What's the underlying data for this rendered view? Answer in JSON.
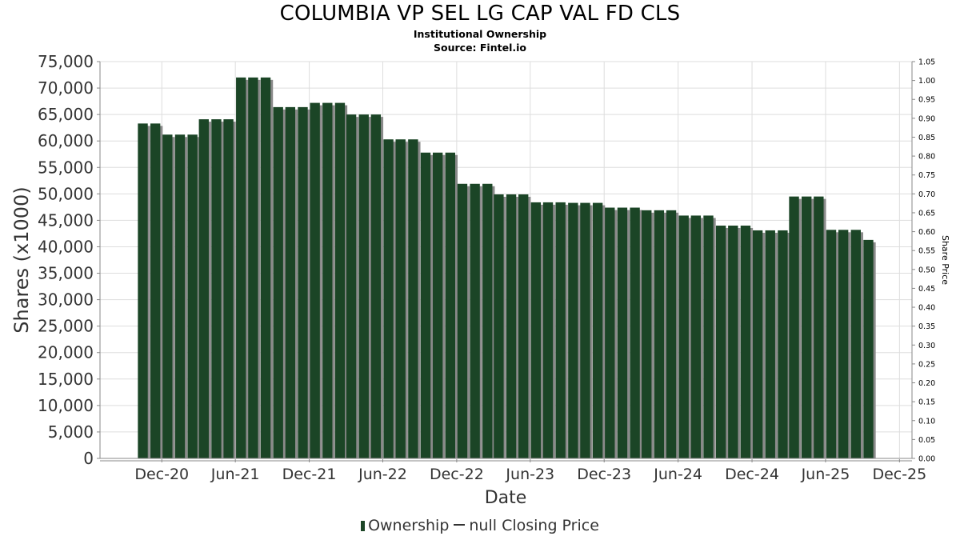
{
  "header": {
    "title": "COLUMBIA VP SEL LG CAP VAL FD CLS",
    "subtitle": "Institutional Ownership",
    "source": "Source: Fintel.io"
  },
  "legend": {
    "ownership": "Ownership",
    "price": "null Closing Price"
  },
  "colors": {
    "bar": "#1b4526",
    "bar_shadow": "#8a8a8a",
    "grid": "#dddddd",
    "axis": "#888888"
  },
  "chart_data": {
    "type": "bar",
    "xlabel": "Date",
    "ylabel": "Shares (x1000)",
    "y2label": "Share Price",
    "ylim": [
      0,
      75000
    ],
    "y2lim": [
      0,
      1.05
    ],
    "grid": true,
    "legend_position": "bottom",
    "yticks": [
      "0",
      "5,000",
      "10,000",
      "15,000",
      "20,000",
      "25,000",
      "30,000",
      "35,000",
      "40,000",
      "45,000",
      "50,000",
      "55,000",
      "60,000",
      "65,000",
      "70,000",
      "75,000"
    ],
    "y2ticks": [
      "0.00",
      "0.05",
      "0.10",
      "0.15",
      "0.20",
      "0.25",
      "0.30",
      "0.35",
      "0.40",
      "0.45",
      "0.50",
      "0.55",
      "0.60",
      "0.65",
      "0.70",
      "0.75",
      "0.80",
      "0.85",
      "0.90",
      "0.95",
      "1.00",
      "1.05"
    ],
    "xticks": [
      {
        "label": "Dec-20",
        "date": "2020-12-01"
      },
      {
        "label": "Jun-21",
        "date": "2021-06-01"
      },
      {
        "label": "Dec-21",
        "date": "2021-12-01"
      },
      {
        "label": "Jun-22",
        "date": "2022-06-01"
      },
      {
        "label": "Dec-22",
        "date": "2022-12-01"
      },
      {
        "label": "Jun-23",
        "date": "2023-06-01"
      },
      {
        "label": "Dec-23",
        "date": "2023-12-01"
      },
      {
        "label": "Jun-24",
        "date": "2024-06-01"
      },
      {
        "label": "Dec-24",
        "date": "2024-12-01"
      },
      {
        "label": "Jun-25",
        "date": "2025-06-01"
      },
      {
        "label": "Dec-25",
        "date": "2025-12-01"
      }
    ],
    "x_range": [
      "2020-07-01",
      "2026-01-01"
    ],
    "series": [
      {
        "name": "Ownership",
        "dates": [
          "2020-10",
          "2020-11",
          "2020-12",
          "2021-01",
          "2021-02",
          "2021-03",
          "2021-04",
          "2021-05",
          "2021-06",
          "2021-07",
          "2021-08",
          "2021-09",
          "2021-10",
          "2021-11",
          "2021-12",
          "2022-01",
          "2022-02",
          "2022-03",
          "2022-04",
          "2022-05",
          "2022-06",
          "2022-07",
          "2022-08",
          "2022-09",
          "2022-10",
          "2022-11",
          "2022-12",
          "2023-01",
          "2023-02",
          "2023-03",
          "2023-04",
          "2023-05",
          "2023-06",
          "2023-07",
          "2023-08",
          "2023-09",
          "2023-10",
          "2023-11",
          "2023-12",
          "2024-01",
          "2024-02",
          "2024-03",
          "2024-04",
          "2024-05",
          "2024-06",
          "2024-07",
          "2024-08",
          "2024-09",
          "2024-10",
          "2024-11",
          "2024-12",
          "2025-01",
          "2025-02",
          "2025-03",
          "2025-04",
          "2025-05",
          "2025-06",
          "2025-07",
          "2025-08",
          "2025-09"
        ],
        "values": [
          63300,
          63300,
          61200,
          61200,
          61200,
          64100,
          64100,
          64100,
          72000,
          72000,
          72000,
          66400,
          66400,
          66400,
          67200,
          67200,
          67200,
          65000,
          65000,
          65000,
          60300,
          60300,
          60300,
          57800,
          57800,
          57800,
          51900,
          51900,
          51900,
          49900,
          49900,
          49900,
          48400,
          48400,
          48400,
          48300,
          48300,
          48300,
          47400,
          47400,
          47400,
          46900,
          46900,
          46900,
          45900,
          45900,
          45900,
          44000,
          44000,
          44000,
          43100,
          43100,
          43100,
          49500,
          49500,
          49500,
          43200,
          43200,
          43200,
          41300
        ]
      },
      {
        "name": "null Closing Price",
        "dates": [],
        "values": []
      }
    ]
  }
}
